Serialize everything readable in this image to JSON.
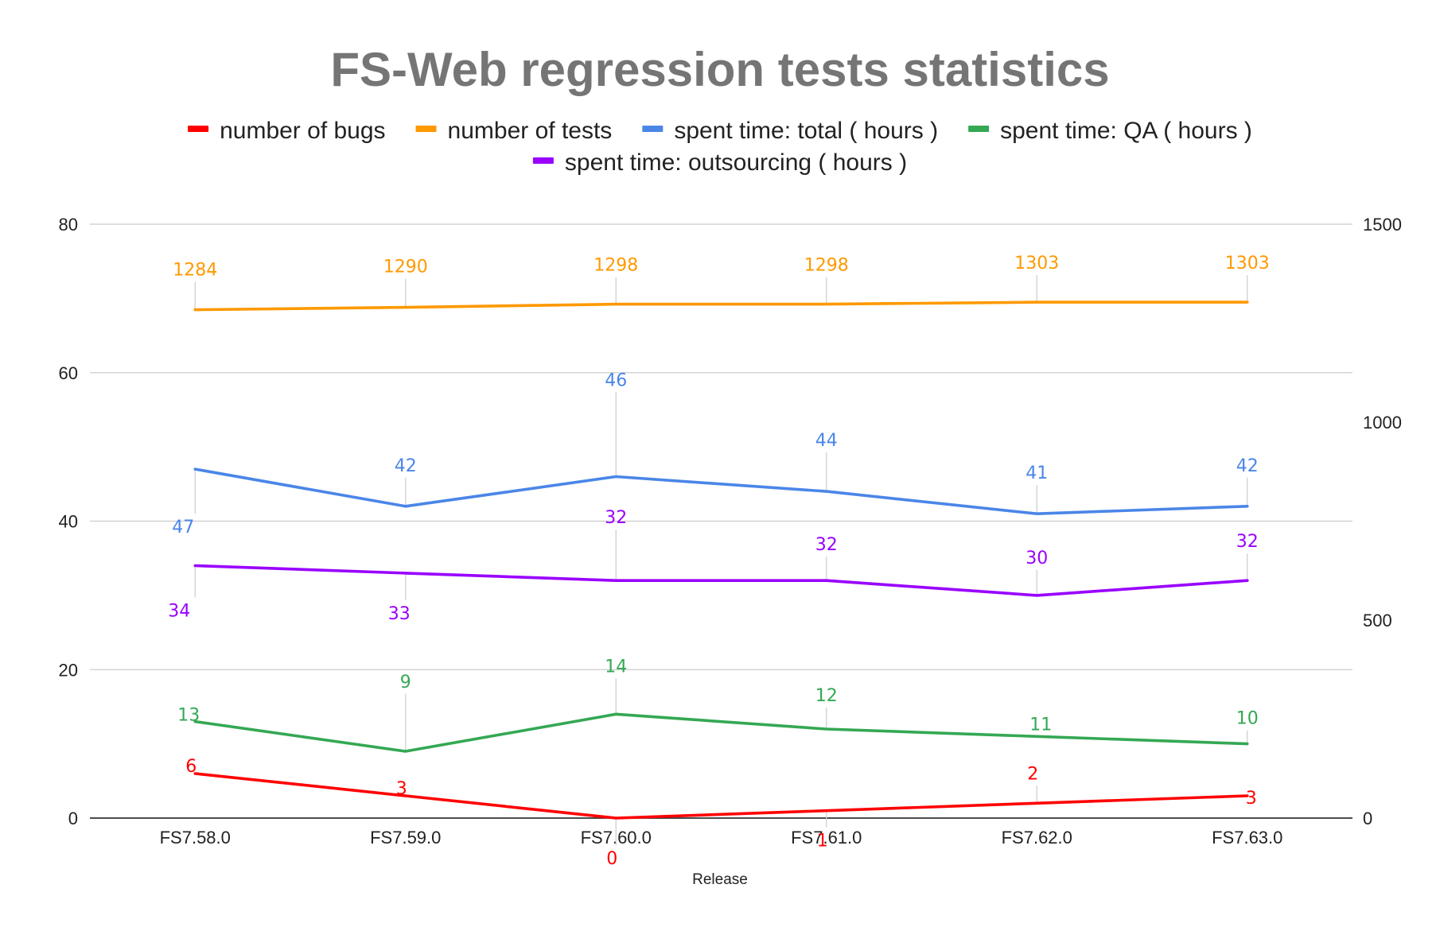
{
  "chart_data": {
    "type": "line",
    "title": "FS-Web regression tests statistics",
    "xlabel": "Release",
    "ylabel": "",
    "y2label": "",
    "categories": [
      "FS7.58.0",
      "FS7.59.0",
      "FS7.60.0",
      "FS7.61.0",
      "FS7.62.0",
      "FS7.63.0"
    ],
    "ylim": [
      0,
      80
    ],
    "y2lim": [
      0,
      1500
    ],
    "yticks": [
      0,
      20,
      40,
      60,
      80
    ],
    "y2ticks": [
      0,
      500,
      1000,
      1500
    ],
    "grid": true,
    "legend_position": "top",
    "series": [
      {
        "name": "number of bugs",
        "axis": "left",
        "color": "#ff0000",
        "values": [
          6,
          3,
          0,
          1,
          2,
          3
        ]
      },
      {
        "name": "number of tests",
        "axis": "right",
        "color": "#ff9900",
        "values": [
          1284,
          1290,
          1298,
          1298,
          1303,
          1303
        ]
      },
      {
        "name": "spent time: total ( hours )",
        "axis": "left",
        "color": "#4a86e8",
        "values": [
          47,
          42,
          46,
          44,
          41,
          42
        ]
      },
      {
        "name": "spent time: QA ( hours )",
        "axis": "left",
        "color": "#34a853",
        "values": [
          13,
          9,
          14,
          12,
          11,
          10
        ]
      },
      {
        "name": "spent time: outsourcing ( hours )",
        "axis": "left",
        "color": "#9900ff",
        "values": [
          34,
          33,
          32,
          32,
          30,
          32
        ]
      }
    ]
  }
}
